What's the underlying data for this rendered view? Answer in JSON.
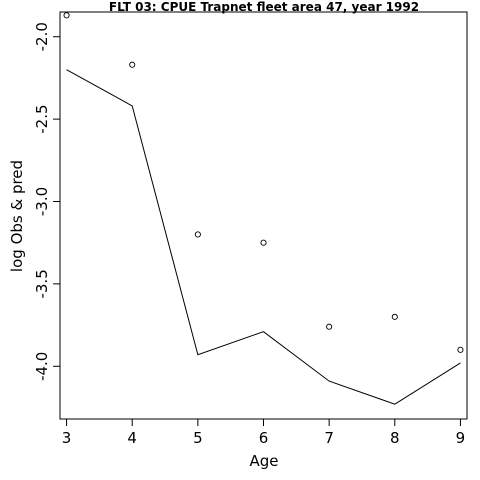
{
  "chart_data": {
    "type": "line",
    "title": "FLT 03: CPUE Trapnet fleet area 47, year 1992",
    "xlabel": "Age",
    "ylabel": "log Obs & pred",
    "x": [
      3,
      4,
      5,
      6,
      7,
      8,
      9
    ],
    "xlim": [
      2.9,
      9.1
    ],
    "ylim": [
      -4.32,
      -1.85
    ],
    "xticks": [
      3,
      4,
      5,
      6,
      7,
      8,
      9
    ],
    "yticks": [
      -2.0,
      -2.5,
      -3.0,
      -3.5,
      -4.0
    ],
    "ytick_labels": [
      "-2.0",
      "-2.5",
      "-3.0",
      "-3.5",
      "-4.0"
    ],
    "series": [
      {
        "style": "points",
        "values": [
          -1.87,
          -2.17,
          -3.2,
          -3.25,
          -3.76,
          -3.7,
          -3.9
        ]
      },
      {
        "style": "line",
        "values": [
          -2.2,
          -2.42,
          -3.93,
          -3.79,
          -4.09,
          -4.23,
          -3.98
        ]
      }
    ],
    "grid": false,
    "colors": {
      "points": "#000000",
      "line": "#000000",
      "frame": "#000000"
    }
  }
}
